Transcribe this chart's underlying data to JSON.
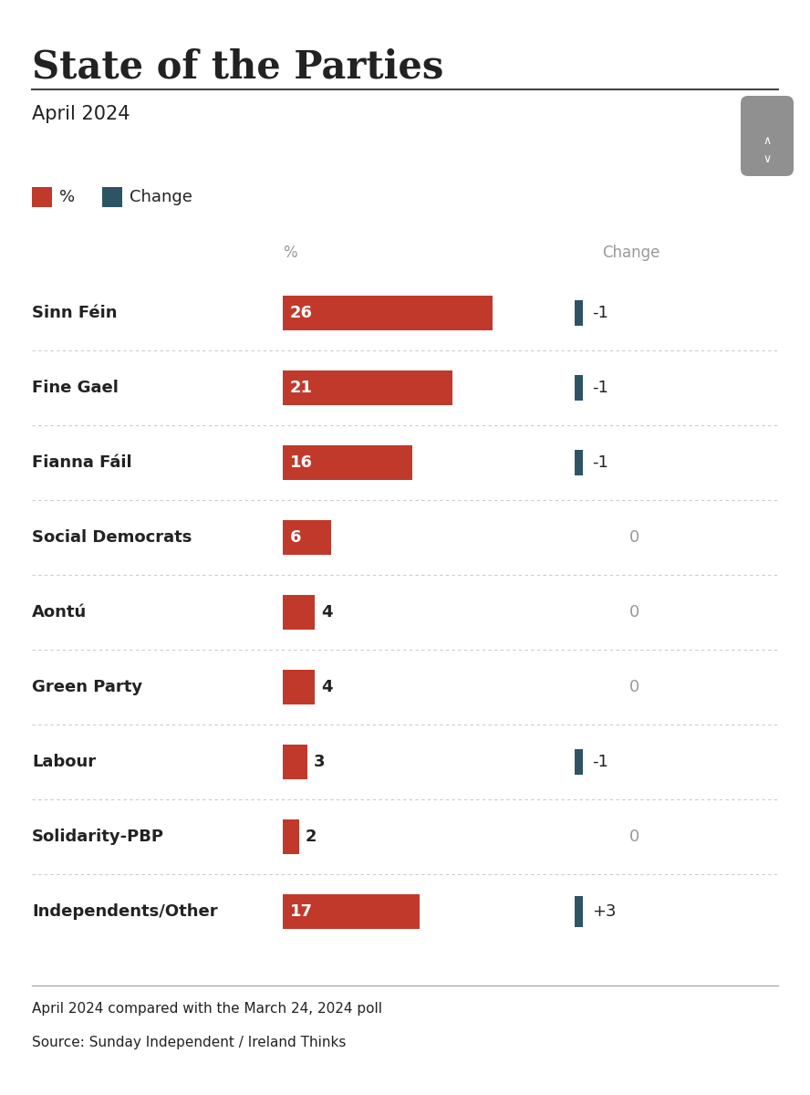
{
  "title": "State of the Parties",
  "subtitle": "April 2024",
  "parties": [
    "Sinn Féin",
    "Fine Gael",
    "Fianna Fáil",
    "Social Democrats",
    "Aontú",
    "Green Party",
    "Labour",
    "Solidarity-PBP",
    "Independents/Other"
  ],
  "percentages": [
    26,
    21,
    16,
    6,
    4,
    4,
    3,
    2,
    17
  ],
  "changes": [
    -1,
    -1,
    -1,
    0,
    0,
    0,
    -1,
    0,
    3
  ],
  "bar_color": "#c0392b",
  "change_bar_color": "#2c5464",
  "bg_color": "#ffffff",
  "text_color": "#222222",
  "label_color_gray": "#999999",
  "footer_line1": "April 2024 compared with the March 24, 2024 poll",
  "footer_line2": "Source: Sunday Independent / Ireland Thinks",
  "legend_pct_label": "%",
  "legend_change_label": "Change",
  "col_pct_label": "%",
  "col_change_label": "Change",
  "max_pct": 26,
  "max_change": 3,
  "title_fontsize": 30,
  "subtitle_fontsize": 15,
  "party_fontsize": 13,
  "bar_value_fontsize": 13,
  "change_value_fontsize": 13,
  "col_header_fontsize": 12,
  "legend_fontsize": 13,
  "footer_fontsize": 11
}
